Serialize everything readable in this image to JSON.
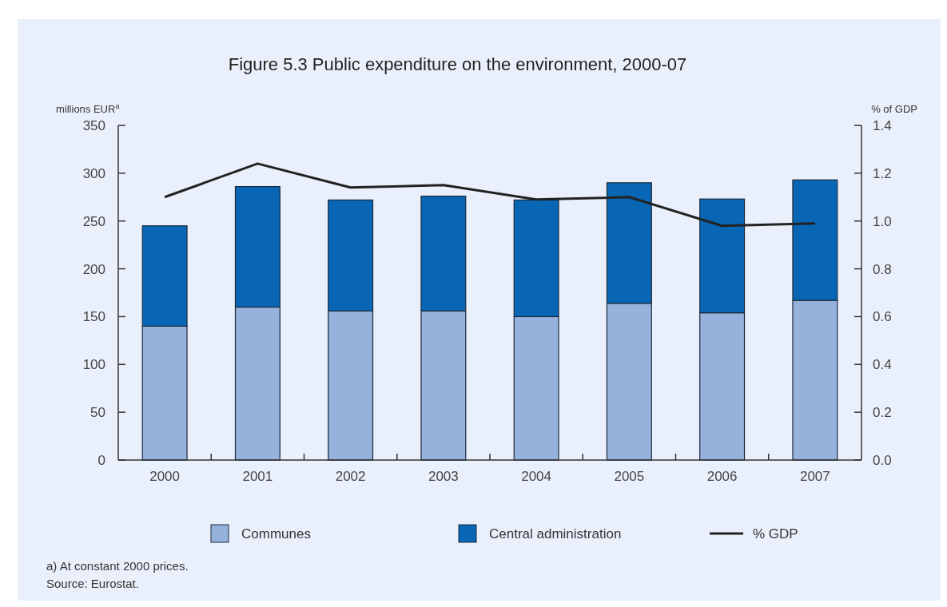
{
  "chart_data": {
    "type": "bar",
    "title": "Figure 5.3 Public expenditure on the environment, 2000-07",
    "ylabel": "millions EUR$^{a}$",
    "y2label": "% of GDP",
    "categories": [
      "2000",
      "2001",
      "2002",
      "2003",
      "2004",
      "2005",
      "2006",
      "2007"
    ],
    "stacked": true,
    "series": [
      {
        "name": "Communes",
        "color": "#95b1dc",
        "values": [
          140,
          160,
          156,
          156,
          150,
          164,
          154,
          167
        ]
      },
      {
        "name": "Central administration",
        "color": "#0866b4",
        "values": [
          105,
          126,
          116,
          120,
          122,
          126,
          119,
          126
        ]
      },
      {
        "name": "% GDP",
        "type": "line",
        "axis": "y2",
        "color": "#222222",
        "values": [
          1.1,
          1.24,
          1.14,
          1.15,
          1.09,
          1.1,
          0.98,
          0.99
        ]
      }
    ],
    "ylim": [
      0,
      350
    ],
    "yticks": [
      0,
      50,
      100,
      150,
      200,
      250,
      300,
      350
    ],
    "y2lim": [
      0,
      1.4
    ],
    "y2ticks": [
      {
        "value": 0,
        "label": "0.0"
      },
      {
        "value": 0.2,
        "label": "0.2"
      },
      {
        "value": 0.4,
        "label": "0.4"
      },
      {
        "value": 0.6,
        "label": "0.6"
      },
      {
        "value": 0.8,
        "label": "0.8"
      },
      {
        "value": 1,
        "label": "1.0"
      },
      {
        "value": 1.2,
        "label": "1.2"
      },
      {
        "value": 1.4,
        "label": "1.4"
      }
    ],
    "grid": false,
    "legend": "bottom",
    "marker": "none",
    "line_style": "solid",
    "annotations": [
      "a) At constant 2000 prices.",
      "Source: Eurostat."
    ]
  }
}
